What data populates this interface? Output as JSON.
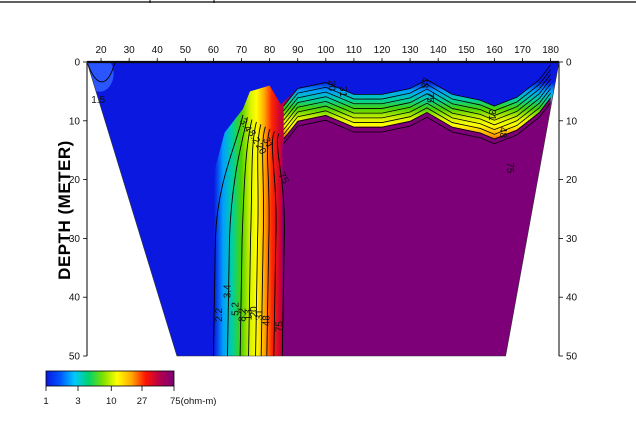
{
  "chart_data": {
    "type": "heatmap",
    "title": "",
    "xlabel": "",
    "ylabel": "DEPTH (METER)",
    "x_ticks": [
      "20",
      "30",
      "40",
      "50",
      "60",
      "70",
      "80",
      "90",
      "100",
      "110",
      "120",
      "130",
      "140",
      "150",
      "160",
      "170",
      "180"
    ],
    "y_ticks": [
      "0",
      "10",
      "20",
      "30",
      "40",
      "50"
    ],
    "xlim": [
      15,
      183
    ],
    "ylim": [
      0,
      50
    ],
    "contour_levels": [
      {
        "value": 1.5,
        "label": "1.5"
      },
      {
        "value": 2.2,
        "label": "2.2"
      },
      {
        "value": 3.4,
        "label": "3.4"
      },
      {
        "value": 5.2,
        "label": "5.2"
      },
      {
        "value": 8.2,
        "label": "8.2"
      },
      {
        "value": 13,
        "label": "13"
      },
      {
        "value": 20,
        "label": "20"
      },
      {
        "value": 31,
        "label": "31"
      },
      {
        "value": 48,
        "label": "48"
      },
      {
        "value": 75,
        "label": "75"
      }
    ],
    "vertical_boundary_x_at_50m": [
      60,
      65,
      69.5,
      72.5,
      75,
      77,
      79,
      81.5,
      84.5
    ],
    "layer_top_depth_profile": [
      {
        "x": 85,
        "depth": 7.5
      },
      {
        "x": 90,
        "depth": 4.5
      },
      {
        "x": 100,
        "depth": 3.5
      },
      {
        "x": 110,
        "depth": 5.5
      },
      {
        "x": 120,
        "depth": 5.5
      },
      {
        "x": 130,
        "depth": 4.5
      },
      {
        "x": 136,
        "depth": 3
      },
      {
        "x": 145,
        "depth": 5.5
      },
      {
        "x": 155,
        "depth": 6.5
      },
      {
        "x": 160,
        "depth": 7.5
      },
      {
        "x": 168,
        "depth": 6
      },
      {
        "x": 176,
        "depth": 3
      },
      {
        "x": 180,
        "depth": 0.5
      }
    ],
    "colorbar": {
      "ticks": [
        "1",
        "3",
        "10",
        "27",
        "75(ohm-m)"
      ],
      "colors": [
        "#0a18e0",
        "#0055ff",
        "#00c8ff",
        "#00d26e",
        "#7ce000",
        "#ffff00",
        "#ffaa00",
        "#ff1400",
        "#b4004b",
        "#7d0078"
      ]
    }
  }
}
